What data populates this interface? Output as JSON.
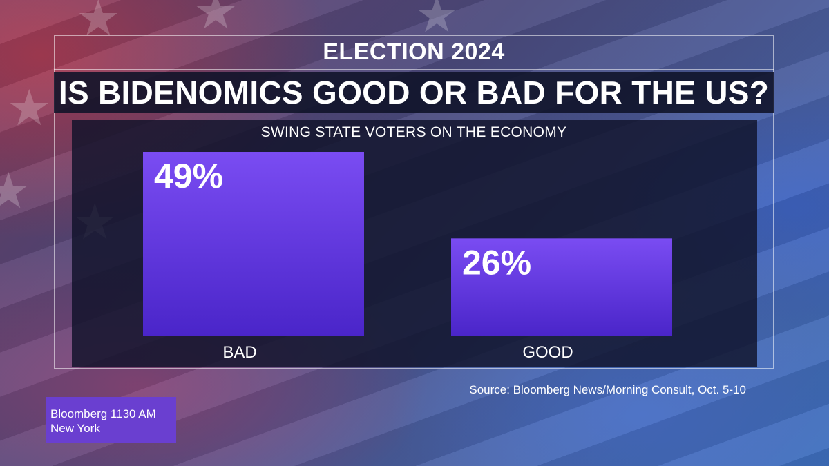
{
  "header": {
    "section": "ELECTION 2024",
    "headline": "IS BIDENOMICS GOOD OR BAD FOR THE US?"
  },
  "chart_data": {
    "type": "bar",
    "title": "SWING STATE VOTERS ON THE ECONOMY",
    "categories": [
      "BAD",
      "GOOD"
    ],
    "values": [
      49,
      26
    ],
    "value_labels": [
      "49%",
      "26%"
    ],
    "ylim": [
      0,
      49
    ],
    "grid": false,
    "bar_color": "#5b2fe0"
  },
  "footer": {
    "source": "Source: Bloomberg News/Morning Consult, Oct. 5-10"
  },
  "station": {
    "line1": "Bloomberg 1130 AM",
    "line2": "New York"
  },
  "colors": {
    "accent": "#6a3fd0",
    "bar_top": "#7a4cf2",
    "bar_bottom": "#4a25c9"
  }
}
